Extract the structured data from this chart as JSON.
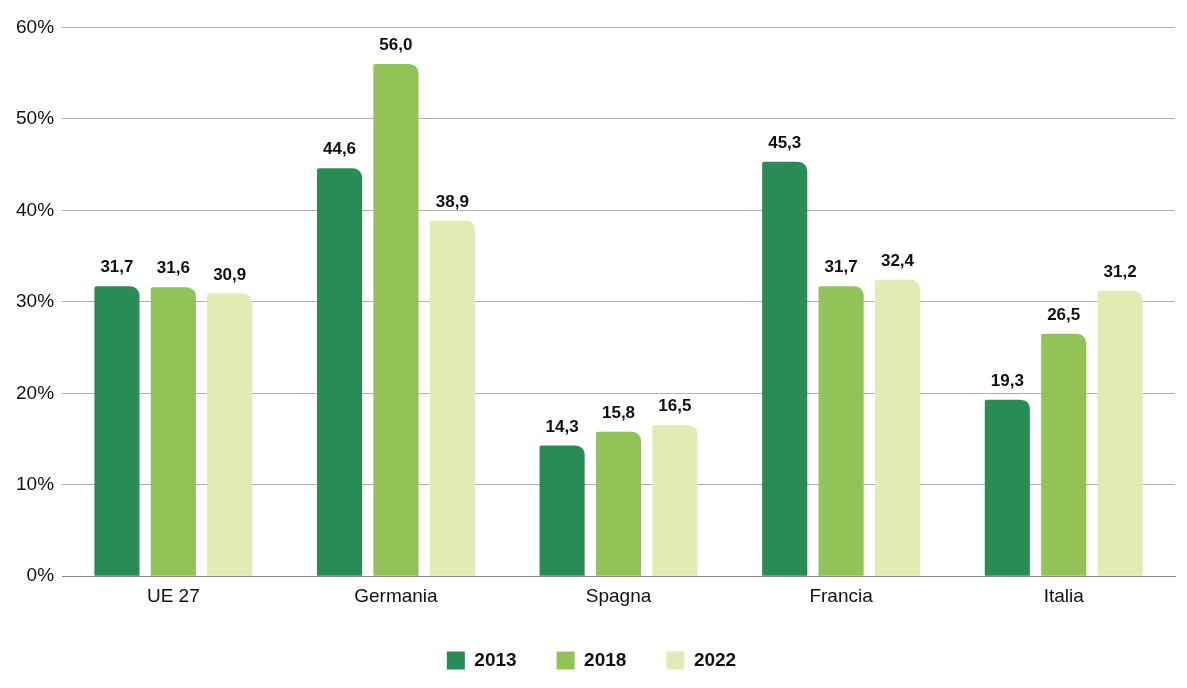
{
  "chart_data": {
    "type": "bar",
    "categories": [
      "UE 27",
      "Germania",
      "Spagna",
      "Francia",
      "Italia"
    ],
    "series": [
      {
        "name": "2013",
        "color": "#2a8c55",
        "values": [
          31.7,
          44.6,
          14.3,
          45.3,
          19.3
        ],
        "value_labels": [
          "31,7",
          "44,6",
          "14,3",
          "45,3",
          "19,3"
        ]
      },
      {
        "name": "2018",
        "color": "#92c356",
        "values": [
          31.6,
          56.0,
          15.8,
          31.7,
          26.5
        ],
        "value_labels": [
          "31,6",
          "56,0",
          "15,8",
          "31,7",
          "26,5"
        ]
      },
      {
        "name": "2022",
        "color": "#e1ebb4",
        "values": [
          30.9,
          38.9,
          16.5,
          32.4,
          31.2
        ],
        "value_labels": [
          "30,9",
          "38,9",
          "16,5",
          "32,4",
          "31,2"
        ]
      }
    ],
    "ylim": [
      0,
      60
    ],
    "yticks": [
      {
        "value": 0,
        "label": "0%"
      },
      {
        "value": 10,
        "label": "10%"
      },
      {
        "value": 20,
        "label": "20%"
      },
      {
        "value": 30,
        "label": "30%"
      },
      {
        "value": 40,
        "label": "40%"
      },
      {
        "value": 50,
        "label": "50%"
      },
      {
        "value": 60,
        "label": "60%"
      }
    ],
    "grid": "y",
    "legend": "bottom"
  }
}
